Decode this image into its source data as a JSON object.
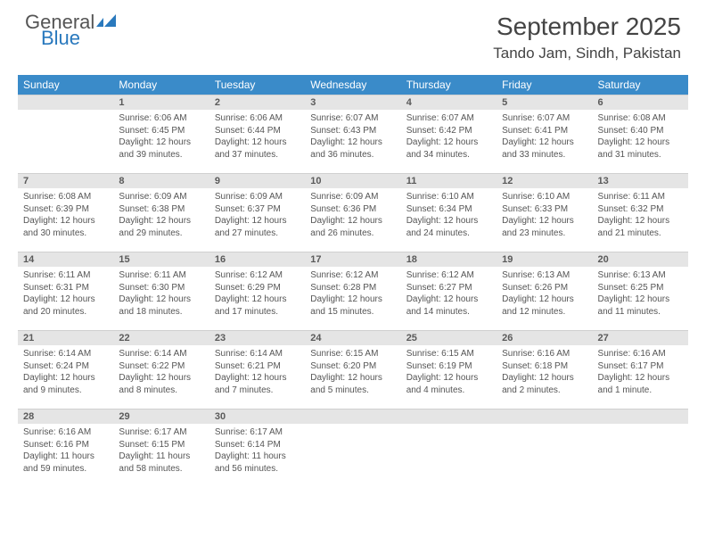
{
  "brand": {
    "word1": "General",
    "word2": "Blue",
    "word1_color": "#555555",
    "word2_color": "#2878bd",
    "flag_color": "#2a79bd"
  },
  "title": {
    "month": "September 2025",
    "location": "Tando Jam, Sindh, Pakistan"
  },
  "colors": {
    "header_bg": "#3a8bc9",
    "header_text": "#ffffff",
    "daynum_bg": "#e5e5e5",
    "text": "#555555"
  },
  "weekdays": [
    "Sunday",
    "Monday",
    "Tuesday",
    "Wednesday",
    "Thursday",
    "Friday",
    "Saturday"
  ],
  "first_weekday_index": 1,
  "days": [
    {
      "n": 1,
      "sunrise": "6:06 AM",
      "sunset": "6:45 PM",
      "daylight": "12 hours and 39 minutes."
    },
    {
      "n": 2,
      "sunrise": "6:06 AM",
      "sunset": "6:44 PM",
      "daylight": "12 hours and 37 minutes."
    },
    {
      "n": 3,
      "sunrise": "6:07 AM",
      "sunset": "6:43 PM",
      "daylight": "12 hours and 36 minutes."
    },
    {
      "n": 4,
      "sunrise": "6:07 AM",
      "sunset": "6:42 PM",
      "daylight": "12 hours and 34 minutes."
    },
    {
      "n": 5,
      "sunrise": "6:07 AM",
      "sunset": "6:41 PM",
      "daylight": "12 hours and 33 minutes."
    },
    {
      "n": 6,
      "sunrise": "6:08 AM",
      "sunset": "6:40 PM",
      "daylight": "12 hours and 31 minutes."
    },
    {
      "n": 7,
      "sunrise": "6:08 AM",
      "sunset": "6:39 PM",
      "daylight": "12 hours and 30 minutes."
    },
    {
      "n": 8,
      "sunrise": "6:09 AM",
      "sunset": "6:38 PM",
      "daylight": "12 hours and 29 minutes."
    },
    {
      "n": 9,
      "sunrise": "6:09 AM",
      "sunset": "6:37 PM",
      "daylight": "12 hours and 27 minutes."
    },
    {
      "n": 10,
      "sunrise": "6:09 AM",
      "sunset": "6:36 PM",
      "daylight": "12 hours and 26 minutes."
    },
    {
      "n": 11,
      "sunrise": "6:10 AM",
      "sunset": "6:34 PM",
      "daylight": "12 hours and 24 minutes."
    },
    {
      "n": 12,
      "sunrise": "6:10 AM",
      "sunset": "6:33 PM",
      "daylight": "12 hours and 23 minutes."
    },
    {
      "n": 13,
      "sunrise": "6:11 AM",
      "sunset": "6:32 PM",
      "daylight": "12 hours and 21 minutes."
    },
    {
      "n": 14,
      "sunrise": "6:11 AM",
      "sunset": "6:31 PM",
      "daylight": "12 hours and 20 minutes."
    },
    {
      "n": 15,
      "sunrise": "6:11 AM",
      "sunset": "6:30 PM",
      "daylight": "12 hours and 18 minutes."
    },
    {
      "n": 16,
      "sunrise": "6:12 AM",
      "sunset": "6:29 PM",
      "daylight": "12 hours and 17 minutes."
    },
    {
      "n": 17,
      "sunrise": "6:12 AM",
      "sunset": "6:28 PM",
      "daylight": "12 hours and 15 minutes."
    },
    {
      "n": 18,
      "sunrise": "6:12 AM",
      "sunset": "6:27 PM",
      "daylight": "12 hours and 14 minutes."
    },
    {
      "n": 19,
      "sunrise": "6:13 AM",
      "sunset": "6:26 PM",
      "daylight": "12 hours and 12 minutes."
    },
    {
      "n": 20,
      "sunrise": "6:13 AM",
      "sunset": "6:25 PM",
      "daylight": "12 hours and 11 minutes."
    },
    {
      "n": 21,
      "sunrise": "6:14 AM",
      "sunset": "6:24 PM",
      "daylight": "12 hours and 9 minutes."
    },
    {
      "n": 22,
      "sunrise": "6:14 AM",
      "sunset": "6:22 PM",
      "daylight": "12 hours and 8 minutes."
    },
    {
      "n": 23,
      "sunrise": "6:14 AM",
      "sunset": "6:21 PM",
      "daylight": "12 hours and 7 minutes."
    },
    {
      "n": 24,
      "sunrise": "6:15 AM",
      "sunset": "6:20 PM",
      "daylight": "12 hours and 5 minutes."
    },
    {
      "n": 25,
      "sunrise": "6:15 AM",
      "sunset": "6:19 PM",
      "daylight": "12 hours and 4 minutes."
    },
    {
      "n": 26,
      "sunrise": "6:16 AM",
      "sunset": "6:18 PM",
      "daylight": "12 hours and 2 minutes."
    },
    {
      "n": 27,
      "sunrise": "6:16 AM",
      "sunset": "6:17 PM",
      "daylight": "12 hours and 1 minute."
    },
    {
      "n": 28,
      "sunrise": "6:16 AM",
      "sunset": "6:16 PM",
      "daylight": "11 hours and 59 minutes."
    },
    {
      "n": 29,
      "sunrise": "6:17 AM",
      "sunset": "6:15 PM",
      "daylight": "11 hours and 58 minutes."
    },
    {
      "n": 30,
      "sunrise": "6:17 AM",
      "sunset": "6:14 PM",
      "daylight": "11 hours and 56 minutes."
    }
  ],
  "labels": {
    "sunrise": "Sunrise:",
    "sunset": "Sunset:",
    "daylight": "Daylight:"
  }
}
